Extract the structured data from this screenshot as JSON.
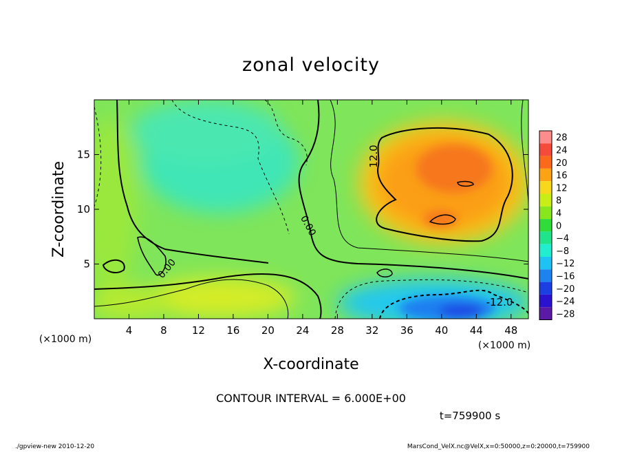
{
  "chart_data": {
    "type": "heatmap",
    "title": "zonal velocity",
    "xlabel": "X-coordinate",
    "ylabel": "Z-coordinate",
    "x_unit_left": "(×1000 m)",
    "x_unit_right": "(×1000 m)",
    "x_range": [
      0,
      50
    ],
    "y_range": [
      0,
      20
    ],
    "x_ticks": [
      4,
      8,
      12,
      16,
      20,
      24,
      28,
      32,
      36,
      40,
      44,
      48
    ],
    "y_ticks": [
      5,
      10,
      15
    ],
    "colorbar": {
      "labels": [
        28,
        24,
        20,
        16,
        12,
        8,
        4,
        0,
        -4,
        -8,
        -12,
        -16,
        -20,
        -24,
        -28
      ],
      "colors": [
        "#ff8c8c",
        "#f44b3a",
        "#fb6a1a",
        "#fca313",
        "#f7d81a",
        "#c8ee16",
        "#88e61c",
        "#2fdc3a",
        "#1fe48c",
        "#20eecf",
        "#1cc3f3",
        "#1d84ee",
        "#1c3fe3",
        "#2a12cf",
        "#5a1aa6"
      ]
    },
    "contour_labels": [
      "12.0",
      "0.00",
      "0.00",
      "0.00",
      "-12.0"
    ],
    "contour_interval_text": "CONTOUR INTERVAL = 6.000E+00",
    "time_text": "t=759900 s",
    "grid": false,
    "regions": [
      {
        "name": "positive-max",
        "x": 40,
        "y": 13,
        "value": 20
      },
      {
        "name": "negative-min",
        "x": 41,
        "y": 1,
        "value": -22
      }
    ]
  },
  "footer": {
    "left": "./gpview-new   2010-12-20",
    "right": "MarsCond_VelX.nc@VelX,x=0:50000,z=0:20000,t=759900"
  },
  "icons": {
    "color-scale": "colorbar"
  }
}
